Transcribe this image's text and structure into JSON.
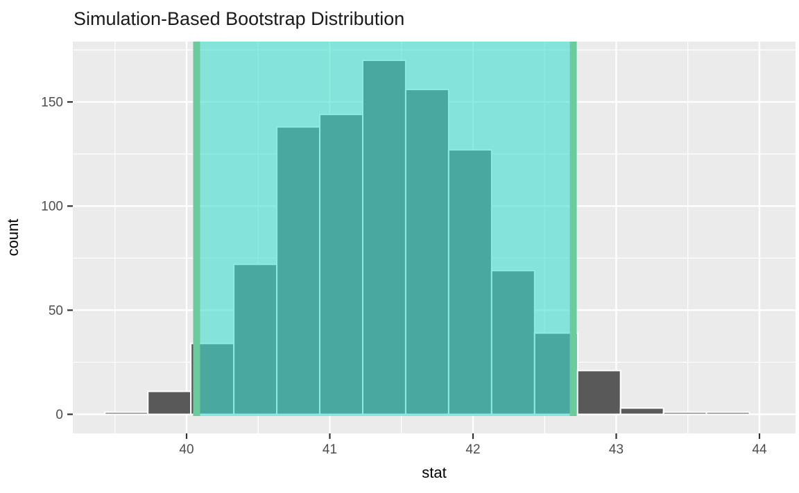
{
  "chart_data": {
    "type": "bar",
    "subtype": "histogram",
    "title": "Simulation-Based Bootstrap Distribution",
    "xlabel": "stat",
    "ylabel": "count",
    "bin_edges": [
      39.43,
      39.73,
      40.03,
      40.33,
      40.63,
      40.93,
      41.23,
      41.53,
      41.83,
      42.13,
      42.43,
      42.73,
      43.03,
      43.33,
      43.63,
      43.93
    ],
    "counts": [
      1,
      11,
      34,
      72,
      138,
      144,
      170,
      156,
      127,
      69,
      39,
      21,
      3,
      1,
      1
    ],
    "x_ticks": [
      "40",
      "41",
      "42",
      "43",
      "44"
    ],
    "x_tick_values": [
      40,
      41,
      42,
      43,
      44
    ],
    "y_ticks": [
      "0",
      "50",
      "100",
      "150"
    ],
    "y_tick_values": [
      0,
      50,
      100,
      150
    ],
    "x_minor_ticks": [
      39.5,
      40.5,
      41.5,
      42.5,
      43.5
    ],
    "y_minor_ticks": [
      25,
      75,
      125,
      175
    ],
    "xlim": [
      39.21,
      44.25
    ],
    "ylim": [
      -9.3,
      178.8
    ],
    "grid": "on",
    "legend": "none",
    "confidence_interval": {
      "lower": 40.07,
      "upper": 42.7
    },
    "colors": {
      "bar_fill": "#595959",
      "bar_border": "#ffffff",
      "shade_fill": "#40E0D0",
      "shade_opacity": "0.6",
      "ci_line": "#6BCB9C",
      "panel_background": "#EBEBEB",
      "gridline": "#FFFFFF",
      "tick_label": "#4D4D4D",
      "tick_mark": "#333333",
      "title_color": "#1A1A1A",
      "axis_label_color": "#000000"
    }
  }
}
